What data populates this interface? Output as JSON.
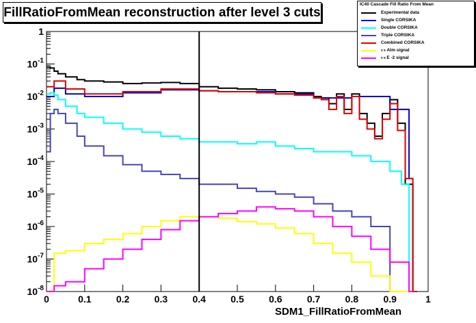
{
  "chart_data": {
    "type": "line",
    "title": "FillRatioFromMean reconstruction after level 3 cuts",
    "xlabel": "SDM1_FillRatioFromMean",
    "ylabel": "",
    "xlim": [
      0,
      1
    ],
    "ylim": [
      1e-08,
      1
    ],
    "yscale": "log",
    "grid": false,
    "legend_position": "top-right",
    "legend_title": "IC40 Cascade Fill Ratio From Mean",
    "x_ticks": [
      "0",
      "0.1",
      "0.2",
      "0.3",
      "0.4",
      "0.5",
      "0.6",
      "0.7",
      "0.8",
      "0.9",
      "1"
    ],
    "y_ticks": [
      {
        "base": "10",
        "exp": "-8"
      },
      {
        "base": "10",
        "exp": "-7"
      },
      {
        "base": "10",
        "exp": "-6"
      },
      {
        "base": "10",
        "exp": "-5"
      },
      {
        "base": "10",
        "exp": "-4"
      },
      {
        "base": "10",
        "exp": "-3"
      },
      {
        "base": "10",
        "exp": "-2"
      },
      {
        "base": "10",
        "exp": "-1"
      },
      {
        "base": "1",
        "exp": ""
      }
    ],
    "cut_line_x": 0.4,
    "series": [
      {
        "name": "Experimental data",
        "color": "#000000",
        "x": [
          0.0,
          0.01,
          0.02,
          0.03,
          0.05,
          0.08,
          0.1,
          0.15,
          0.2,
          0.25,
          0.3,
          0.35,
          0.4,
          0.45,
          0.5,
          0.55,
          0.6,
          0.65,
          0.7,
          0.72,
          0.74,
          0.76,
          0.78,
          0.8,
          0.82,
          0.84,
          0.86,
          0.88,
          0.9,
          0.92,
          0.94,
          0.96
        ],
        "y": [
          0.08,
          0.075,
          0.06,
          0.05,
          0.04,
          0.033,
          0.03,
          0.028,
          0.025,
          0.026,
          0.027,
          0.025,
          0.02,
          0.018,
          0.017,
          0.016,
          0.014,
          0.013,
          0.01,
          0.009,
          0.006,
          0.012,
          0.004,
          0.012,
          0.003,
          0.0015,
          0.0006,
          0.003,
          0.008,
          0.0015,
          2e-05,
          1e-08
        ]
      },
      {
        "name": "Single CORSIKA",
        "color": "#0000cc",
        "x": [
          0.0,
          0.02,
          0.05,
          0.1,
          0.2,
          0.3,
          0.4,
          0.45,
          0.5,
          0.6,
          0.7,
          0.8,
          0.9,
          0.95
        ],
        "y": [
          0.01,
          0.018,
          0.012,
          0.01,
          0.013,
          0.016,
          0.015,
          0.014,
          0.014,
          0.012,
          0.009,
          0.01,
          0.004,
          3e-05
        ]
      },
      {
        "name": "Double CORSIKA",
        "color": "#00ffff",
        "x": [
          0.0,
          0.01,
          0.02,
          0.03,
          0.05,
          0.08,
          0.1,
          0.15,
          0.2,
          0.25,
          0.3,
          0.35,
          0.4,
          0.45,
          0.5,
          0.55,
          0.6,
          0.65,
          0.7,
          0.75,
          0.8,
          0.85,
          0.9,
          0.93,
          0.95
        ],
        "y": [
          0.012,
          0.013,
          0.011,
          0.008,
          0.005,
          0.003,
          0.0023,
          0.0015,
          0.001,
          0.0008,
          0.0006,
          0.0005,
          0.0004,
          0.0004,
          0.00035,
          0.0004,
          0.0003,
          0.00025,
          0.0002,
          0.0002,
          0.00015,
          0.0001,
          5e-05,
          2e-05,
          1e-08
        ]
      },
      {
        "name": "Triple CORSIKA",
        "color": "#4444bb",
        "x": [
          0.0,
          0.01,
          0.02,
          0.03,
          0.05,
          0.08,
          0.1,
          0.15,
          0.2,
          0.25,
          0.3,
          0.35,
          0.4,
          0.45,
          0.5,
          0.55,
          0.6,
          0.65,
          0.7,
          0.75,
          0.8,
          0.85,
          0.9
        ],
        "y": [
          0.0002,
          0.003,
          0.004,
          0.003,
          0.0015,
          0.0006,
          0.0003,
          0.00015,
          8e-05,
          5e-05,
          4e-05,
          3e-05,
          2e-05,
          2e-05,
          1.5e-05,
          1.2e-05,
          1e-05,
          8e-06,
          5e-06,
          3e-06,
          2e-06,
          1e-06,
          1e-08
        ]
      },
      {
        "name": "Combined CORSIKA",
        "color": "#dd0000",
        "x": [
          0.0,
          0.02,
          0.05,
          0.1,
          0.2,
          0.3,
          0.4,
          0.45,
          0.5,
          0.55,
          0.6,
          0.65,
          0.7,
          0.72,
          0.74,
          0.76,
          0.78,
          0.8,
          0.82,
          0.84,
          0.86,
          0.88,
          0.9,
          0.92,
          0.94,
          0.96
        ],
        "y": [
          0.02,
          0.03,
          0.017,
          0.012,
          0.014,
          0.017,
          0.015,
          0.014,
          0.014,
          0.013,
          0.012,
          0.011,
          0.009,
          0.008,
          0.004,
          0.01,
          0.003,
          0.01,
          0.002,
          0.001,
          0.0005,
          0.002,
          0.006,
          0.0009,
          3e-05,
          1e-08
        ]
      },
      {
        "name": "νe Atm signal",
        "color": "#ffff00",
        "x": [
          0.0,
          0.02,
          0.05,
          0.1,
          0.15,
          0.2,
          0.25,
          0.3,
          0.35,
          0.4,
          0.45,
          0.5,
          0.55,
          0.6,
          0.65,
          0.7,
          0.75,
          0.8,
          0.85,
          0.9,
          0.95
        ],
        "y": [
          1e-08,
          1.5e-07,
          1.8e-07,
          3e-07,
          4e-07,
          6e-07,
          1e-06,
          1.5e-06,
          2e-06,
          2e-06,
          1.8e-06,
          1.4e-06,
          1.2e-06,
          9e-07,
          6e-07,
          3e-07,
          1.5e-07,
          8e-08,
          3e-08,
          1e-08,
          1e-08
        ]
      },
      {
        "name": "νe E-2 signal",
        "color": "#ff00ff",
        "x": [
          0.0,
          0.02,
          0.05,
          0.1,
          0.15,
          0.2,
          0.25,
          0.3,
          0.35,
          0.4,
          0.45,
          0.5,
          0.55,
          0.6,
          0.65,
          0.7,
          0.75,
          0.8,
          0.85,
          0.9,
          0.95
        ],
        "y": [
          1e-08,
          1.5e-08,
          2e-08,
          5e-08,
          1e-07,
          2e-07,
          4e-07,
          8e-07,
          1.5e-06,
          2e-06,
          2.5e-06,
          3e-06,
          4e-06,
          3.5e-06,
          3e-06,
          2e-06,
          1e-06,
          5e-07,
          2e-07,
          8e-08,
          1e-08
        ]
      }
    ]
  },
  "legend": {
    "title": "IC40 Cascade Fill Ratio From Mean",
    "items": [
      {
        "label": "Experimental data",
        "sub": ""
      },
      {
        "label": "Single CORSIKA",
        "sub": ""
      },
      {
        "label": "Double CORSIKA",
        "sub": ""
      },
      {
        "label": "Triple CORSIKA",
        "sub": ""
      },
      {
        "label": "Combined CORSIKA",
        "sub": ""
      },
      {
        "label": "Atm signal",
        "sub": "ν e"
      },
      {
        "label": "E -2 signal",
        "sub": "ν e"
      }
    ]
  }
}
